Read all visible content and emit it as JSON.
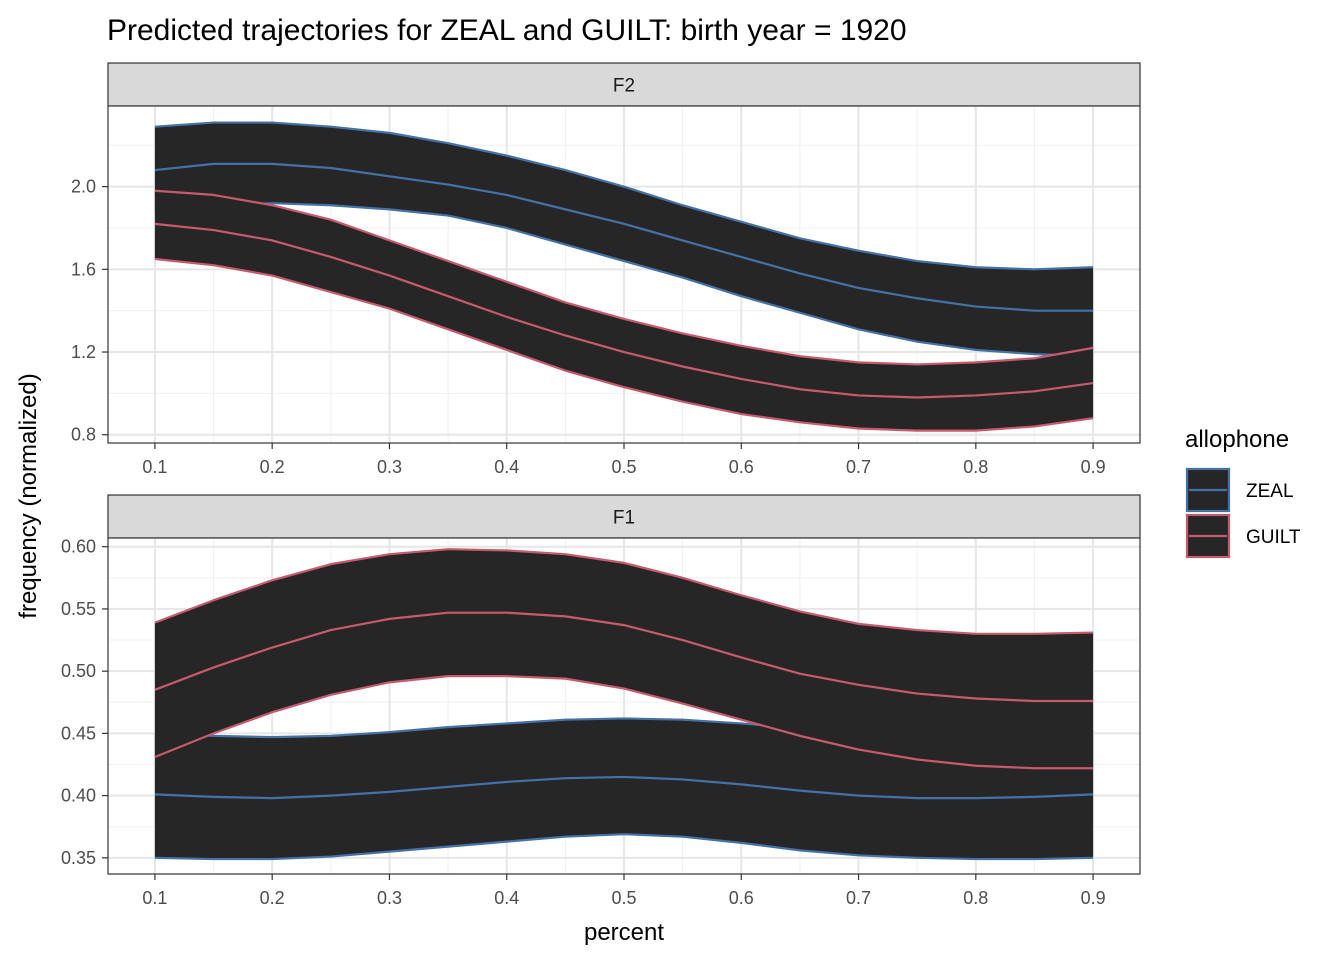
{
  "chart_data": {
    "type": "line",
    "title": "Predicted trajectories for ZEAL and GUILT: birth year = 1920",
    "xlabel": "percent",
    "ylabel": "frequency (normalized)",
    "legend": {
      "title": "allophone",
      "position": "right",
      "entries": [
        {
          "label": "ZEAL",
          "color": "#4472a8"
        },
        {
          "label": "GUILT",
          "color": "#c85a6e"
        }
      ]
    },
    "ribbon_fill": "#262626",
    "grid": true,
    "panels": [
      {
        "strip": "F2",
        "xlim": [
          0.06,
          0.94
        ],
        "x_ticks": [
          "0.1",
          "0.2",
          "0.3",
          "0.4",
          "0.5",
          "0.6",
          "0.7",
          "0.8",
          "0.9"
        ],
        "ylim": [
          0.76,
          2.39
        ],
        "y_ticks": [
          "0.8",
          "1.2",
          "1.6",
          "2.0"
        ],
        "x": [
          0.1,
          0.15,
          0.2,
          0.25,
          0.3,
          0.35,
          0.4,
          0.45,
          0.5,
          0.55,
          0.6,
          0.65,
          0.7,
          0.75,
          0.8,
          0.85,
          0.9
        ],
        "series": [
          {
            "name": "ZEAL",
            "color": "#4472a8",
            "fit": [
              2.08,
              2.11,
              2.11,
              2.09,
              2.05,
              2.01,
              1.96,
              1.89,
              1.82,
              1.74,
              1.66,
              1.58,
              1.51,
              1.46,
              1.42,
              1.4,
              1.4
            ],
            "upper": [
              2.29,
              2.31,
              2.31,
              2.29,
              2.26,
              2.21,
              2.15,
              2.08,
              2.0,
              1.91,
              1.83,
              1.75,
              1.69,
              1.64,
              1.61,
              1.6,
              1.61
            ],
            "lower": [
              1.88,
              1.91,
              1.92,
              1.91,
              1.89,
              1.86,
              1.8,
              1.72,
              1.64,
              1.56,
              1.47,
              1.39,
              1.31,
              1.25,
              1.21,
              1.19,
              1.18
            ]
          },
          {
            "name": "GUILT",
            "color": "#c85a6e",
            "fit": [
              1.82,
              1.79,
              1.74,
              1.66,
              1.57,
              1.47,
              1.37,
              1.28,
              1.2,
              1.13,
              1.07,
              1.02,
              0.99,
              0.98,
              0.99,
              1.01,
              1.05
            ],
            "upper": [
              1.98,
              1.96,
              1.91,
              1.84,
              1.74,
              1.64,
              1.54,
              1.44,
              1.36,
              1.29,
              1.23,
              1.18,
              1.15,
              1.14,
              1.15,
              1.17,
              1.22
            ],
            "lower": [
              1.65,
              1.62,
              1.57,
              1.49,
              1.41,
              1.31,
              1.21,
              1.11,
              1.03,
              0.96,
              0.9,
              0.86,
              0.83,
              0.82,
              0.82,
              0.84,
              0.88
            ]
          }
        ]
      },
      {
        "strip": "F1",
        "xlim": [
          0.06,
          0.94
        ],
        "x_ticks": [
          "0.1",
          "0.2",
          "0.3",
          "0.4",
          "0.5",
          "0.6",
          "0.7",
          "0.8",
          "0.9"
        ],
        "ylim": [
          0.337,
          0.607
        ],
        "y_ticks": [
          "0.35",
          "0.40",
          "0.45",
          "0.50",
          "0.55",
          "0.60"
        ],
        "x": [
          0.1,
          0.15,
          0.2,
          0.25,
          0.3,
          0.35,
          0.4,
          0.45,
          0.5,
          0.55,
          0.6,
          0.65,
          0.7,
          0.75,
          0.8,
          0.85,
          0.9
        ],
        "series": [
          {
            "name": "ZEAL",
            "color": "#4472a8",
            "fit": [
              0.401,
              0.399,
              0.398,
              0.4,
              0.403,
              0.407,
              0.411,
              0.414,
              0.415,
              0.413,
              0.409,
              0.404,
              0.4,
              0.398,
              0.398,
              0.399,
              0.401
            ],
            "upper": [
              0.45,
              0.448,
              0.447,
              0.448,
              0.451,
              0.455,
              0.458,
              0.461,
              0.462,
              0.461,
              0.458,
              0.454,
              0.45,
              0.448,
              0.448,
              0.449,
              0.452
            ],
            "lower": [
              0.35,
              0.349,
              0.349,
              0.351,
              0.355,
              0.359,
              0.363,
              0.367,
              0.369,
              0.367,
              0.362,
              0.356,
              0.352,
              0.35,
              0.349,
              0.349,
              0.35
            ]
          },
          {
            "name": "GUILT",
            "color": "#c85a6e",
            "fit": [
              0.485,
              0.503,
              0.519,
              0.533,
              0.542,
              0.547,
              0.547,
              0.544,
              0.537,
              0.525,
              0.511,
              0.498,
              0.489,
              0.482,
              0.478,
              0.476,
              0.476
            ],
            "upper": [
              0.539,
              0.557,
              0.573,
              0.586,
              0.594,
              0.598,
              0.597,
              0.594,
              0.587,
              0.575,
              0.561,
              0.548,
              0.538,
              0.533,
              0.53,
              0.53,
              0.531
            ],
            "lower": [
              0.431,
              0.45,
              0.467,
              0.481,
              0.491,
              0.496,
              0.496,
              0.494,
              0.486,
              0.474,
              0.461,
              0.448,
              0.437,
              0.429,
              0.424,
              0.422,
              0.422
            ]
          }
        ]
      }
    ]
  }
}
